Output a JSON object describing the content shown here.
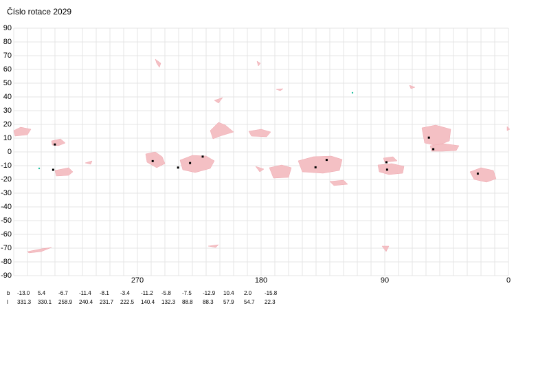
{
  "chart_data": {
    "type": "scatter",
    "title": "Číslo rotace  2029",
    "xlim": [
      360,
      0
    ],
    "ylim": [
      -90,
      90
    ],
    "xticks": [
      270,
      180,
      90,
      0
    ],
    "xgrid": [
      360,
      350,
      340,
      330,
      320,
      310,
      300,
      290,
      280,
      270,
      260,
      250,
      240,
      230,
      220,
      210,
      200,
      190,
      180,
      170,
      160,
      150,
      140,
      130,
      120,
      110,
      100,
      90,
      80,
      70,
      60,
      50,
      40,
      30,
      20,
      10,
      0
    ],
    "yticks": [
      90,
      80,
      70,
      60,
      50,
      40,
      30,
      20,
      10,
      0,
      -10,
      -20,
      -30,
      -40,
      -50,
      -60,
      -70,
      -80,
      -90
    ],
    "grid": true,
    "color": "#000000",
    "table_rows": [
      "b",
      "l"
    ],
    "x": [
      331.3,
      330.1,
      258.9,
      240.4,
      231.7,
      222.5,
      140.4,
      132.3,
      88.8,
      88.3,
      57.9,
      54.7,
      22.3
    ],
    "values": [
      -13,
      5.4,
      -6.7,
      -11.4,
      -8.1,
      -3.4,
      -11.2,
      -5.8,
      -7.5,
      -12.9,
      10.4,
      2,
      -15.8
    ],
    "value_labels": [
      "-13.0",
      "5.4",
      "-6.7",
      "-11.4",
      "-8.1",
      "-3.4",
      "-11.2",
      "-5.8",
      "-7.5",
      "-12.9",
      "10.4",
      "2.0",
      "-15.8"
    ]
  }
}
